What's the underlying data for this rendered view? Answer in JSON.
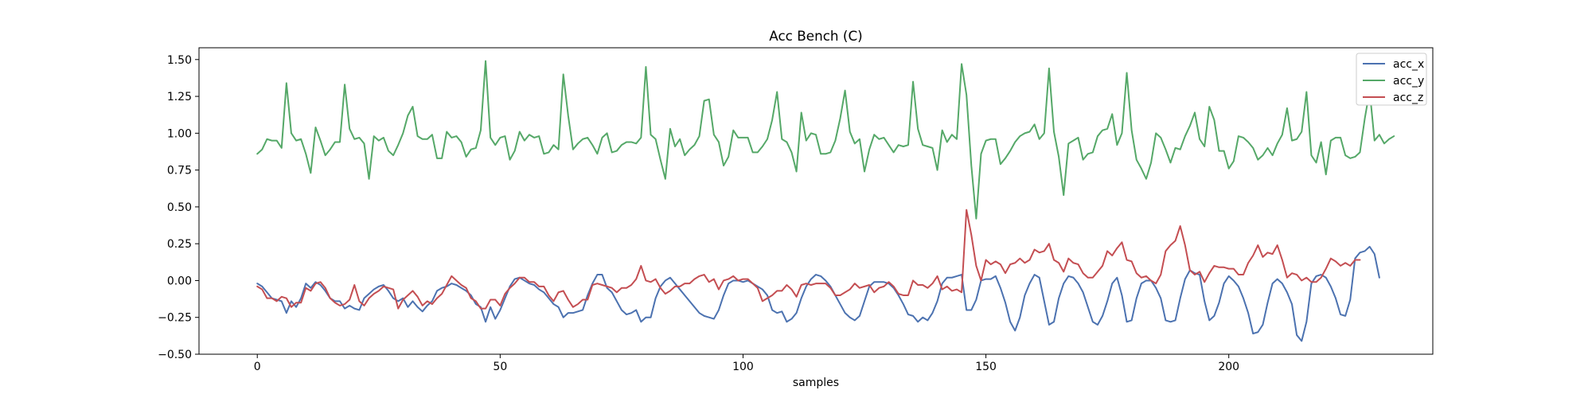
{
  "chart_data": {
    "type": "line",
    "title": "Acc Bench (C)",
    "xlabel": "samples",
    "ylabel": "",
    "xlim": [
      -12,
      242
    ],
    "ylim": [
      -0.5,
      1.58
    ],
    "xticks": [
      0,
      50,
      100,
      150,
      200
    ],
    "yticks": [
      -0.5,
      -0.25,
      0.0,
      0.25,
      0.5,
      0.75,
      1.0,
      1.25,
      1.5
    ],
    "xtick_labels": [
      "0",
      "50",
      "100",
      "150",
      "200"
    ],
    "ytick_labels": [
      "−0.50",
      "−0.25",
      "0.00",
      "0.25",
      "0.50",
      "0.75",
      "1.00",
      "1.25",
      "1.50"
    ],
    "grid": false,
    "legend_position": "upper right",
    "series": [
      {
        "name": "acc_x",
        "color": "#4c72b0",
        "values": [
          -0.02,
          -0.04,
          -0.08,
          -0.12,
          -0.13,
          -0.14,
          -0.22,
          -0.14,
          -0.18,
          -0.12,
          -0.02,
          -0.05,
          -0.01,
          -0.03,
          -0.07,
          -0.12,
          -0.14,
          -0.14,
          -0.19,
          -0.17,
          -0.19,
          -0.2,
          -0.12,
          -0.09,
          -0.06,
          -0.04,
          -0.03,
          -0.07,
          -0.12,
          -0.14,
          -0.12,
          -0.18,
          -0.14,
          -0.18,
          -0.21,
          -0.17,
          -0.14,
          -0.07,
          -0.05,
          -0.04,
          -0.02,
          -0.03,
          -0.05,
          -0.07,
          -0.1,
          -0.16,
          -0.18,
          -0.28,
          -0.18,
          -0.26,
          -0.2,
          -0.12,
          -0.04,
          0.01,
          0.02,
          0.0,
          -0.02,
          -0.03,
          -0.06,
          -0.08,
          -0.12,
          -0.16,
          -0.18,
          -0.25,
          -0.22,
          -0.22,
          -0.21,
          -0.2,
          -0.1,
          -0.02,
          0.04,
          0.04,
          -0.05,
          -0.08,
          -0.14,
          -0.2,
          -0.23,
          -0.22,
          -0.2,
          -0.28,
          -0.25,
          -0.25,
          -0.12,
          -0.04,
          0.0,
          0.02,
          -0.02,
          -0.06,
          -0.1,
          -0.14,
          -0.18,
          -0.22,
          -0.24,
          -0.25,
          -0.26,
          -0.2,
          -0.1,
          -0.02,
          0.0,
          0.0,
          -0.01,
          0.0,
          -0.02,
          -0.04,
          -0.06,
          -0.1,
          -0.2,
          -0.22,
          -0.21,
          -0.28,
          -0.26,
          -0.22,
          -0.12,
          -0.04,
          0.01,
          0.04,
          0.03,
          0.0,
          -0.04,
          -0.1,
          -0.16,
          -0.22,
          -0.25,
          -0.27,
          -0.24,
          -0.14,
          -0.04,
          -0.01,
          -0.01,
          -0.01,
          -0.02,
          -0.05,
          -0.1,
          -0.16,
          -0.23,
          -0.24,
          -0.28,
          -0.25,
          -0.27,
          -0.22,
          -0.14,
          -0.02,
          0.02,
          0.02,
          0.03,
          0.04,
          -0.2,
          -0.2,
          -0.13,
          0.0,
          0.01,
          0.01,
          0.03,
          -0.05,
          -0.15,
          -0.28,
          -0.34,
          -0.25,
          -0.1,
          -0.02,
          0.04,
          0.02,
          -0.14,
          -0.3,
          -0.28,
          -0.12,
          -0.02,
          0.03,
          0.02,
          -0.02,
          -0.08,
          -0.18,
          -0.28,
          -0.3,
          -0.24,
          -0.14,
          -0.02,
          0.02,
          -0.1,
          -0.28,
          -0.27,
          -0.12,
          -0.02,
          0.0,
          0.0,
          -0.05,
          -0.12,
          -0.27,
          -0.28,
          -0.27,
          -0.12,
          0.01,
          0.07,
          0.05,
          0.04,
          -0.14,
          -0.27,
          -0.24,
          -0.15,
          -0.02,
          0.03,
          0.0,
          -0.04,
          -0.12,
          -0.22,
          -0.36,
          -0.35,
          -0.3,
          -0.15,
          -0.02,
          0.01,
          -0.02,
          -0.08,
          -0.16,
          -0.37,
          -0.41,
          -0.28,
          -0.02,
          0.03,
          0.04,
          0.02,
          -0.04,
          -0.12,
          -0.23,
          -0.24,
          -0.13,
          0.15,
          0.19,
          0.2,
          0.23,
          0.18,
          0.02
        ]
      },
      {
        "name": "acc_y",
        "color": "#55a868",
        "values": [
          0.86,
          0.89,
          0.96,
          0.95,
          0.95,
          0.9,
          1.34,
          1.0,
          0.95,
          0.96,
          0.86,
          0.73,
          1.04,
          0.95,
          0.85,
          0.89,
          0.94,
          0.94,
          1.33,
          1.03,
          0.96,
          0.97,
          0.93,
          0.69,
          0.98,
          0.95,
          0.97,
          0.88,
          0.85,
          0.92,
          1.0,
          1.12,
          1.18,
          0.98,
          0.96,
          0.96,
          0.99,
          0.83,
          0.83,
          1.01,
          0.97,
          0.98,
          0.94,
          0.84,
          0.89,
          0.9,
          1.02,
          1.49,
          0.97,
          0.92,
          0.97,
          0.98,
          0.82,
          0.88,
          1.01,
          0.95,
          0.99,
          0.97,
          0.98,
          0.86,
          0.87,
          0.92,
          0.89,
          1.4,
          1.12,
          0.89,
          0.93,
          0.96,
          0.97,
          0.92,
          0.86,
          0.97,
          1.0,
          0.87,
          0.88,
          0.92,
          0.94,
          0.94,
          0.93,
          0.97,
          1.45,
          0.99,
          0.96,
          0.82,
          0.69,
          1.03,
          0.91,
          0.96,
          0.85,
          0.89,
          0.92,
          0.98,
          1.22,
          1.23,
          0.99,
          0.94,
          0.78,
          0.84,
          1.02,
          0.97,
          0.97,
          0.97,
          0.87,
          0.87,
          0.91,
          0.96,
          1.09,
          1.28,
          0.96,
          0.94,
          0.87,
          0.74,
          1.14,
          0.95,
          1.0,
          0.99,
          0.86,
          0.86,
          0.87,
          0.95,
          1.1,
          1.29,
          1.01,
          0.93,
          0.96,
          0.74,
          0.89,
          0.99,
          0.96,
          0.97,
          0.92,
          0.87,
          0.92,
          0.91,
          0.92,
          1.35,
          1.03,
          0.92,
          0.91,
          0.9,
          0.75,
          1.02,
          0.94,
          0.99,
          0.96,
          1.47,
          1.26,
          0.78,
          0.42,
          0.86,
          0.95,
          0.96,
          0.96,
          0.79,
          0.83,
          0.88,
          0.94,
          0.98,
          1.0,
          1.01,
          1.06,
          0.96,
          1.0,
          1.44,
          1.01,
          0.84,
          0.58,
          0.93,
          0.95,
          0.97,
          0.82,
          0.86,
          0.87,
          0.98,
          1.02,
          1.03,
          1.13,
          0.92,
          1.0,
          1.41,
          1.02,
          0.82,
          0.76,
          0.69,
          0.8,
          1.0,
          0.97,
          0.89,
          0.8,
          0.9,
          0.89,
          0.98,
          1.05,
          1.14,
          0.96,
          0.91,
          1.18,
          1.09,
          0.88,
          0.88,
          0.76,
          0.81,
          0.98,
          0.97,
          0.94,
          0.9,
          0.82,
          0.85,
          0.9,
          0.85,
          0.93,
          0.99,
          1.17,
          0.95,
          0.96,
          1.01,
          1.28,
          0.85,
          0.8,
          0.94,
          0.72,
          0.95,
          0.97,
          0.97,
          0.85,
          0.83,
          0.84,
          0.87,
          1.1,
          1.29,
          0.95,
          0.99,
          0.93,
          0.96,
          0.98
        ]
      },
      {
        "name": "acc_z",
        "color": "#c44e52",
        "values": [
          -0.04,
          -0.06,
          -0.12,
          -0.12,
          -0.14,
          -0.11,
          -0.12,
          -0.18,
          -0.15,
          -0.15,
          -0.05,
          -0.07,
          -0.02,
          -0.01,
          -0.05,
          -0.12,
          -0.15,
          -0.17,
          -0.16,
          -0.13,
          -0.03,
          -0.14,
          -0.17,
          -0.12,
          -0.09,
          -0.07,
          -0.04,
          -0.05,
          -0.06,
          -0.19,
          -0.13,
          -0.1,
          -0.07,
          -0.11,
          -0.17,
          -0.14,
          -0.16,
          -0.12,
          -0.09,
          -0.03,
          0.03,
          0.0,
          -0.03,
          -0.05,
          -0.12,
          -0.14,
          -0.19,
          -0.19,
          -0.13,
          -0.13,
          -0.17,
          -0.09,
          -0.05,
          -0.02,
          0.02,
          0.02,
          -0.01,
          -0.01,
          -0.04,
          -0.04,
          -0.1,
          -0.14,
          -0.08,
          -0.07,
          -0.13,
          -0.18,
          -0.16,
          -0.13,
          -0.13,
          -0.03,
          -0.02,
          -0.03,
          -0.04,
          -0.05,
          -0.08,
          -0.05,
          -0.05,
          -0.03,
          0.01,
          0.1,
          0.0,
          -0.01,
          0.01,
          -0.05,
          -0.09,
          -0.07,
          -0.04,
          -0.04,
          -0.02,
          -0.02,
          0.01,
          0.03,
          0.04,
          -0.01,
          0.01,
          -0.06,
          0.0,
          0.01,
          0.03,
          0.0,
          0.01,
          0.01,
          -0.02,
          -0.05,
          -0.14,
          -0.12,
          -0.1,
          -0.07,
          -0.07,
          -0.03,
          -0.06,
          -0.11,
          -0.03,
          -0.02,
          -0.03,
          -0.02,
          -0.02,
          -0.02,
          -0.05,
          -0.1,
          -0.1,
          -0.08,
          -0.06,
          -0.02,
          -0.05,
          -0.04,
          -0.03,
          -0.08,
          -0.05,
          -0.04,
          -0.01,
          -0.04,
          -0.09,
          -0.1,
          -0.1,
          0.0,
          -0.03,
          -0.03,
          -0.05,
          -0.02,
          0.03,
          -0.06,
          -0.04,
          -0.07,
          -0.06,
          -0.08,
          0.48,
          0.31,
          0.1,
          0.0,
          0.14,
          0.11,
          0.13,
          0.11,
          0.05,
          0.11,
          0.12,
          0.15,
          0.12,
          0.14,
          0.21,
          0.19,
          0.2,
          0.25,
          0.14,
          0.12,
          0.06,
          0.15,
          0.12,
          0.11,
          0.05,
          0.02,
          0.02,
          0.06,
          0.1,
          0.2,
          0.17,
          0.22,
          0.26,
          0.14,
          0.13,
          0.05,
          0.02,
          0.03,
          0.0,
          -0.02,
          0.04,
          0.2,
          0.24,
          0.27,
          0.37,
          0.24,
          0.07,
          0.04,
          0.06,
          -0.01,
          0.05,
          0.1,
          0.09,
          0.09,
          0.08,
          0.08,
          0.04,
          0.04,
          0.12,
          0.17,
          0.24,
          0.16,
          0.19,
          0.18,
          0.24,
          0.14,
          0.02,
          0.05,
          0.04,
          0.0,
          0.02,
          -0.01,
          -0.01,
          0.02,
          0.08,
          0.15,
          0.13,
          0.1,
          0.12,
          0.1,
          0.14,
          0.14
        ]
      }
    ]
  }
}
